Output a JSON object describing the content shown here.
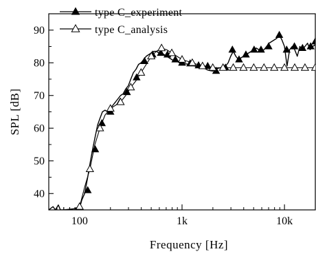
{
  "chart_data": {
    "type": "line",
    "title": "",
    "xlabel": "Frequency  [Hz]",
    "ylabel": "SPL [dB]",
    "x_scale": "log",
    "xlim": [
      50,
      20000
    ],
    "ylim": [
      35,
      95
    ],
    "x_ticks": [
      {
        "value": 100,
        "label": "100"
      },
      {
        "value": 1000,
        "label": "1k"
      },
      {
        "value": 10000,
        "label": "10k"
      }
    ],
    "y_ticks": [
      {
        "value": 40,
        "label": "40"
      },
      {
        "value": 50,
        "label": "50"
      },
      {
        "value": 60,
        "label": "60"
      },
      {
        "value": 70,
        "label": "70"
      },
      {
        "value": 80,
        "label": "80"
      },
      {
        "value": 90,
        "label": "90"
      }
    ],
    "grid": false,
    "legend_position": "top-left",
    "series": [
      {
        "name": "type C_experiment",
        "marker": "filled-triangle",
        "color": "#000000",
        "x": [
          50,
          55,
          58,
          62,
          65,
          70,
          100,
          105,
          112,
          120,
          126,
          133,
          141,
          150,
          158,
          167,
          177,
          188,
          199,
          211,
          224,
          237,
          251,
          266,
          282,
          299,
          316,
          335,
          355,
          376,
          398,
          422,
          447,
          473,
          501,
          531,
          562,
          596,
          631,
          668,
          708,
          750,
          794,
          841,
          891,
          944,
          1000,
          1059,
          1122,
          1189,
          1259,
          1334,
          1413,
          1496,
          1585,
          1679,
          1778,
          1884,
          1995,
          2113,
          2239,
          2371,
          2512,
          2661,
          2818,
          2985,
          3162,
          3350,
          3548,
          3758,
          3981,
          4217,
          4467,
          4732,
          5012,
          5309,
          5623,
          5957,
          6310,
          6683,
          7079,
          7499,
          7943,
          8414,
          8913,
          9441,
          10000,
          10593,
          11220,
          11885,
          12589,
          13335,
          14125,
          14962,
          15849,
          16788,
          17783,
          18836,
          19953
        ],
        "y": [
          35,
          36,
          35,
          36.5,
          35,
          35,
          35.5,
          38,
          40,
          45,
          49,
          53,
          57,
          61,
          63,
          65,
          65.5,
          65,
          66,
          67,
          68,
          69,
          70,
          70.5,
          72,
          73,
          75,
          77,
          78,
          79.5,
          80,
          81,
          82,
          82.5,
          83,
          83.5,
          83.5,
          83,
          83,
          82.5,
          82,
          81.5,
          81,
          80.5,
          80.5,
          80,
          80,
          79.8,
          79.6,
          79.5,
          79.2,
          79,
          78.8,
          78.6,
          78.4,
          78.2,
          77.8,
          77.6,
          77.5,
          78,
          78.3,
          78.5,
          78.8,
          79,
          80,
          82,
          83.5,
          82,
          81,
          81.5,
          82,
          82.5,
          83,
          83.5,
          84,
          84.5,
          84,
          83.5,
          84,
          85,
          86,
          86.5,
          87,
          87.5,
          88.5,
          87,
          85,
          79,
          84,
          85,
          84,
          82,
          85,
          84,
          85,
          86,
          84,
          85,
          85.5
        ],
        "marker_x": [
          120,
          142,
          165,
          200,
          248,
          290,
          360,
          430,
          515,
          620,
          720,
          860,
          1000,
          1200,
          1450,
          1780,
          2150,
          2650,
          3100,
          3600,
          4200,
          5050,
          5900,
          7000,
          8900,
          10500,
          12500,
          15000,
          18000,
          20000
        ],
        "marker_y": [
          41,
          53.5,
          61.5,
          65,
          68,
          71,
          75.5,
          80.5,
          82.5,
          83,
          82.5,
          81,
          80,
          79.8,
          79.2,
          79,
          77.5,
          78.5,
          84,
          81,
          82.5,
          84,
          84,
          85,
          88.5,
          84,
          85,
          84.5,
          85,
          86.5
        ]
      },
      {
        "name": "type C_analysis",
        "marker": "open-triangle",
        "color": "#000000",
        "x": [
          90,
          100,
          112,
          126,
          141,
          158,
          177,
          200,
          224,
          251,
          282,
          316,
          355,
          398,
          447,
          501,
          562,
          631,
          708,
          794,
          891,
          1000,
          1122,
          1259,
          1413,
          1585,
          1778,
          1995,
          2239,
          2512,
          2818,
          3162,
          3548,
          3981,
          4467,
          5012,
          5623,
          6310,
          7079,
          7943,
          8913,
          10000,
          11220,
          12589,
          14125,
          15849,
          17783,
          19953
        ],
        "y": [
          35.5,
          36,
          42,
          47.5,
          55,
          60,
          64,
          66,
          67,
          68,
          70,
          72.5,
          74.5,
          77,
          79.5,
          82,
          83.5,
          84.5,
          84,
          83,
          82,
          81,
          80.5,
          80,
          79.5,
          79,
          79,
          78.5,
          78.5,
          78.5,
          78.5,
          78.5,
          78.5,
          78.5,
          78.5,
          78.5,
          78.5,
          78.5,
          78.5,
          78.5,
          78.5,
          78.5,
          78.5,
          78.5,
          78.5,
          78.5,
          78.5,
          78.5
        ],
        "marker_x": [
          100,
          126,
          158,
          200,
          251,
          316,
          398,
          501,
          631,
          794,
          1000,
          1259,
          1585,
          1995,
          2512,
          3162,
          3981,
          5012,
          6310,
          7943,
          10000,
          12589,
          15849,
          19953
        ],
        "marker_y": [
          36,
          47.5,
          60,
          66,
          68,
          72.5,
          77,
          82,
          84.5,
          83,
          81,
          80,
          79,
          78.5,
          78.5,
          78.5,
          78.5,
          78.5,
          78.5,
          78.5,
          78.5,
          78.5,
          78.5,
          78.5
        ]
      }
    ]
  }
}
